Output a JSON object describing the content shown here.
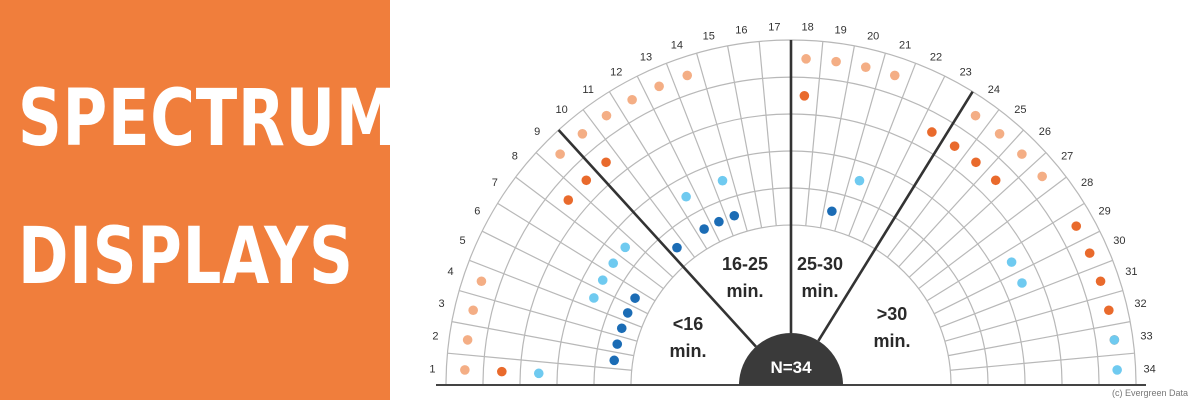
{
  "banner": {
    "line1": "SPECTRUM",
    "line2": "DISPLAYS",
    "background": "#f07e3c"
  },
  "copyright": "(c) Evergreen Data",
  "colors": {
    "light_orange": "#f4ae85",
    "orange": "#e96a2c",
    "light_blue": "#6fcaf0",
    "blue": "#1b6cb5",
    "grid": "#b8b8b8",
    "divider": "#333333",
    "hub": "#3a3a3a"
  },
  "chart_data": {
    "type": "scatter",
    "slots": 34,
    "ring_count": 5,
    "slot_labels": [
      "1",
      "2",
      "3",
      "4",
      "5",
      "6",
      "7",
      "8",
      "9",
      "10",
      "11",
      "12",
      "13",
      "14",
      "15",
      "16",
      "17",
      "18",
      "19",
      "20",
      "21",
      "22",
      "23",
      "24",
      "25",
      "26",
      "27",
      "28",
      "29",
      "30",
      "31",
      "32",
      "33",
      "34"
    ],
    "center_label": "N=34",
    "segments": [
      {
        "label_line1": "<16",
        "label_line2": "min."
      },
      {
        "label_line1": "16-25",
        "label_line2": "min."
      },
      {
        "label_line1": "25-30",
        "label_line2": "min."
      },
      {
        "label_line1": ">30",
        "label_line2": "min."
      }
    ],
    "dividers_after_slot": [
      9,
      17,
      23
    ],
    "points": [
      {
        "slot": 1,
        "ring": 5,
        "color": "light_orange"
      },
      {
        "slot": 2,
        "ring": 5,
        "color": "light_orange"
      },
      {
        "slot": 3,
        "ring": 5,
        "color": "light_orange"
      },
      {
        "slot": 4,
        "ring": 5,
        "color": "light_orange"
      },
      {
        "slot": 1,
        "ring": 4,
        "color": "orange"
      },
      {
        "slot": 1,
        "ring": 3,
        "color": "light_blue"
      },
      {
        "slot": 2,
        "ring": 1,
        "color": "blue"
      },
      {
        "slot": 3,
        "ring": 1,
        "color": "blue"
      },
      {
        "slot": 4,
        "ring": 1,
        "color": "blue"
      },
      {
        "slot": 5,
        "ring": 1,
        "color": "blue"
      },
      {
        "slot": 6,
        "ring": 1,
        "color": "blue"
      },
      {
        "slot": 5,
        "ring": 2,
        "color": "light_blue"
      },
      {
        "slot": 6,
        "ring": 2,
        "color": "light_blue"
      },
      {
        "slot": 7,
        "ring": 2,
        "color": "light_blue"
      },
      {
        "slot": 8,
        "ring": 2,
        "color": "light_blue"
      },
      {
        "slot": 10,
        "ring": 1,
        "color": "blue"
      },
      {
        "slot": 12,
        "ring": 1,
        "color": "blue"
      },
      {
        "slot": 13,
        "ring": 1,
        "color": "blue"
      },
      {
        "slot": 14,
        "ring": 1,
        "color": "blue"
      },
      {
        "slot": 12,
        "ring": 2,
        "color": "light_blue"
      },
      {
        "slot": 14,
        "ring": 2,
        "color": "light_blue"
      },
      {
        "slot": 8,
        "ring": 4,
        "color": "orange"
      },
      {
        "slot": 9,
        "ring": 4,
        "color": "orange"
      },
      {
        "slot": 10,
        "ring": 4,
        "color": "orange"
      },
      {
        "slot": 9,
        "ring": 5,
        "color": "light_orange"
      },
      {
        "slot": 10,
        "ring": 5,
        "color": "light_orange"
      },
      {
        "slot": 11,
        "ring": 5,
        "color": "light_orange"
      },
      {
        "slot": 12,
        "ring": 5,
        "color": "light_orange"
      },
      {
        "slot": 13,
        "ring": 5,
        "color": "light_orange"
      },
      {
        "slot": 14,
        "ring": 5,
        "color": "light_orange"
      },
      {
        "slot": 18,
        "ring": 5,
        "color": "light_orange"
      },
      {
        "slot": 19,
        "ring": 5,
        "color": "light_orange"
      },
      {
        "slot": 20,
        "ring": 5,
        "color": "light_orange"
      },
      {
        "slot": 21,
        "ring": 5,
        "color": "light_orange"
      },
      {
        "slot": 18,
        "ring": 4,
        "color": "orange"
      },
      {
        "slot": 20,
        "ring": 1,
        "color": "blue"
      },
      {
        "slot": 21,
        "ring": 2,
        "color": "light_blue"
      },
      {
        "slot": 23,
        "ring": 4,
        "color": "orange"
      },
      {
        "slot": 24,
        "ring": 4,
        "color": "orange"
      },
      {
        "slot": 25,
        "ring": 4,
        "color": "orange"
      },
      {
        "slot": 26,
        "ring": 4,
        "color": "orange"
      },
      {
        "slot": 24,
        "ring": 5,
        "color": "light_orange"
      },
      {
        "slot": 25,
        "ring": 5,
        "color": "light_orange"
      },
      {
        "slot": 26,
        "ring": 5,
        "color": "light_orange"
      },
      {
        "slot": 27,
        "ring": 5,
        "color": "light_orange"
      },
      {
        "slot": 29,
        "ring": 5,
        "color": "orange"
      },
      {
        "slot": 30,
        "ring": 5,
        "color": "orange"
      },
      {
        "slot": 31,
        "ring": 5,
        "color": "orange"
      },
      {
        "slot": 32,
        "ring": 5,
        "color": "orange"
      },
      {
        "slot": 33,
        "ring": 5,
        "color": "orange"
      },
      {
        "slot": 29,
        "ring": 3,
        "color": "light_blue"
      },
      {
        "slot": 30,
        "ring": 3,
        "color": "light_blue"
      },
      {
        "slot": 33,
        "ring": 5,
        "color": "light_blue"
      },
      {
        "slot": 34,
        "ring": 5,
        "color": "light_blue"
      }
    ]
  }
}
